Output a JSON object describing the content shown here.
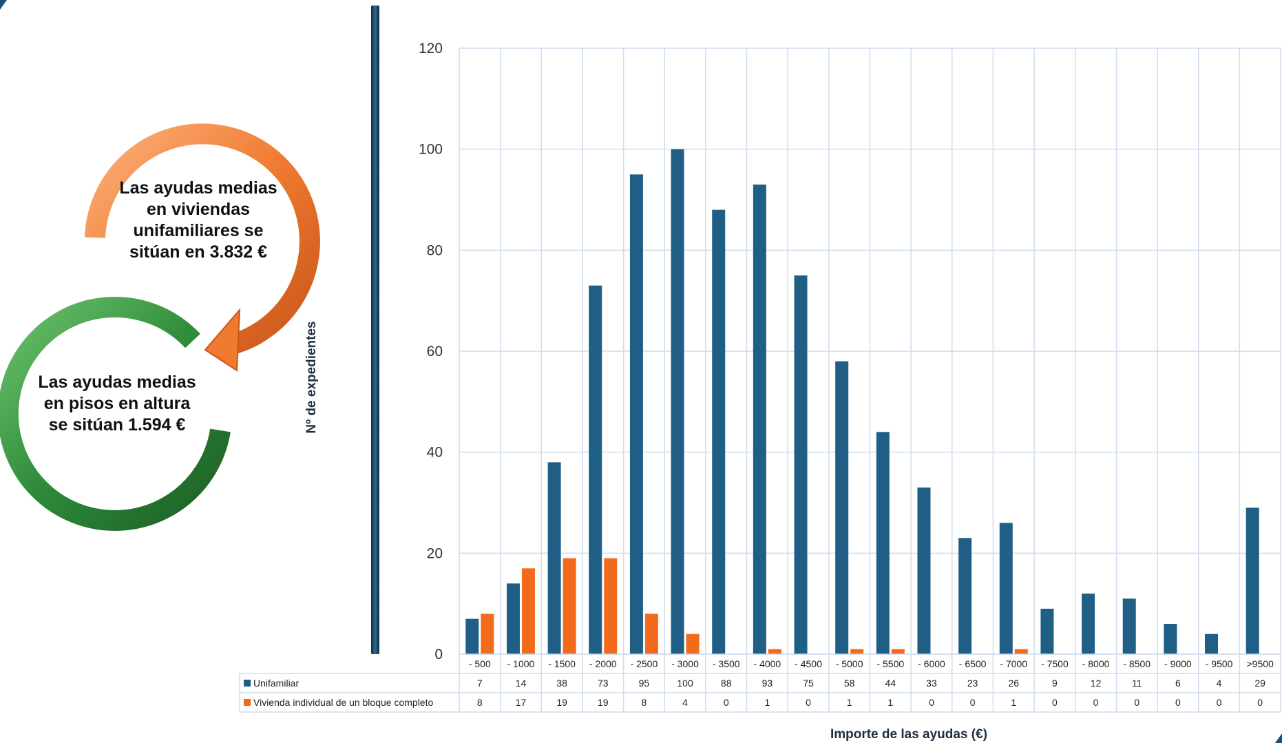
{
  "colors": {
    "unifamiliar": "#1f5f86",
    "bloque": "#f26a1b",
    "grid": "#cfdcec",
    "callout_orange": "#f07a30",
    "callout_green": "#2e8b3a"
  },
  "callouts": {
    "unifamiliar_text": "Las ayudas medias en viviendas unifamiliares se sitúan en 3.832 €",
    "pisos_text": "Las ayudas medias en pisos en altura se sitúan 1.594 €"
  },
  "chart_data": {
    "type": "bar",
    "title": "",
    "xlabel": "Importe de las ayudas (€)",
    "ylabel": "Nº de expedientes",
    "ylim": [
      0,
      120
    ],
    "yticks": [
      0,
      20,
      40,
      60,
      80,
      100,
      120
    ],
    "grid": true,
    "legend": "data-table",
    "categories": [
      "- 500",
      "- 1000",
      "- 1500",
      "- 2000",
      "- 2500",
      "- 3000",
      "- 3500",
      "- 4000",
      "- 4500",
      "- 5000",
      "- 5500",
      "- 6000",
      "- 6500",
      "- 7000",
      "- 7500",
      "- 8000",
      "- 8500",
      "- 9000",
      "- 9500",
      ">9500"
    ],
    "series": [
      {
        "name": "Unifamiliar",
        "values": [
          7,
          14,
          38,
          73,
          95,
          100,
          88,
          93,
          75,
          58,
          44,
          33,
          23,
          26,
          9,
          12,
          11,
          6,
          4,
          29
        ]
      },
      {
        "name": "Vivienda individual de un bloque completo",
        "values": [
          8,
          17,
          19,
          19,
          8,
          4,
          0,
          1,
          0,
          1,
          1,
          0,
          0,
          1,
          0,
          0,
          0,
          0,
          0,
          0
        ]
      }
    ]
  }
}
